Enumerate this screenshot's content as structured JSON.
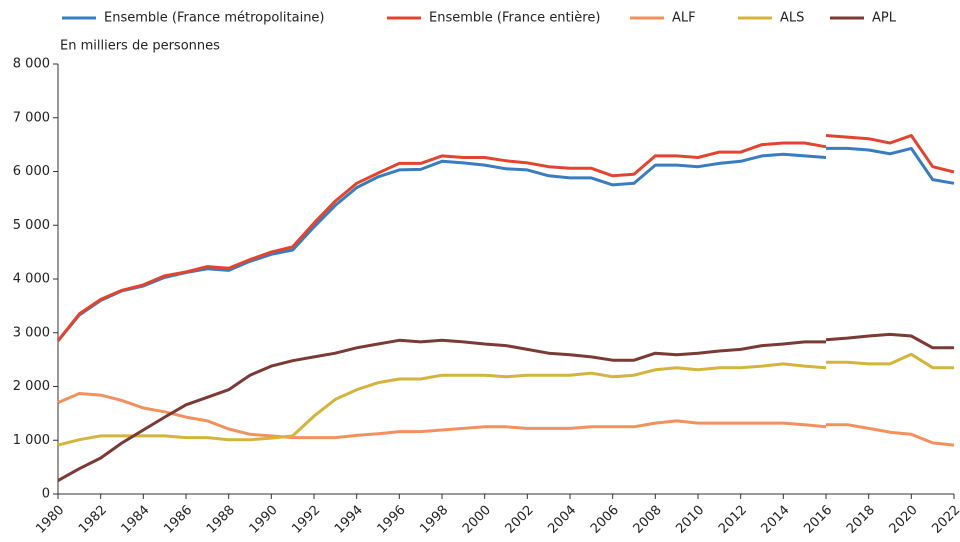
{
  "chart_data": {
    "type": "line",
    "y_label": "En milliers de personnes",
    "xlim": [
      1980,
      2022
    ],
    "xticks": [
      1980,
      1982,
      1984,
      1986,
      1988,
      1990,
      1992,
      1994,
      1996,
      1998,
      2000,
      2002,
      2004,
      2006,
      2008,
      2010,
      2012,
      2014,
      2016,
      2018,
      2020,
      2022
    ],
    "ylim": [
      0,
      8000
    ],
    "yticks": [
      0,
      {
        "value": 1000,
        "label": "1 000"
      },
      {
        "value": 2000,
        "label": "2 000"
      },
      {
        "value": 3000,
        "label": "3 000"
      },
      {
        "value": 4000,
        "label": "4 000"
      },
      {
        "value": 5000,
        "label": "5 000"
      },
      {
        "value": 6000,
        "label": "6 000"
      },
      {
        "value": 7000,
        "label": "7 000"
      },
      {
        "value": 8000,
        "label": "8 000"
      }
    ],
    "grid": false,
    "legend": "top",
    "x": [
      1980,
      1981,
      1982,
      1983,
      1984,
      1985,
      1986,
      1987,
      1988,
      1989,
      1990,
      1991,
      1992,
      1993,
      1994,
      1995,
      1996,
      1997,
      1998,
      1999,
      2000,
      2001,
      2002,
      2003,
      2004,
      2005,
      2006,
      2007,
      2008,
      2009,
      2010,
      2011,
      2012,
      2013,
      2014,
      2015,
      2016,
      null,
      2016,
      2017,
      2018,
      2019,
      2020,
      2021,
      2022
    ],
    "series": [
      {
        "name": "Ensemble (France métropolitaine)",
        "color": "#3a7cc0",
        "values": [
          2850,
          3330,
          3600,
          3780,
          3870,
          4030,
          4120,
          4190,
          4160,
          4330,
          4460,
          4540,
          4970,
          5370,
          5700,
          5900,
          6030,
          6040,
          6190,
          6160,
          6120,
          6050,
          6030,
          5920,
          5880,
          5880,
          5750,
          5780,
          6120,
          6120,
          6090,
          6150,
          6190,
          6290,
          6320,
          6290,
          6260,
          null,
          6430,
          6430,
          6400,
          6330,
          6430,
          5850,
          5780
        ]
      },
      {
        "name": "Ensemble (France entière)",
        "color": "#e2452f",
        "values": [
          2850,
          3350,
          3620,
          3790,
          3890,
          4060,
          4130,
          4230,
          4200,
          4360,
          4500,
          4600,
          5040,
          5450,
          5780,
          5970,
          6150,
          6150,
          6290,
          6260,
          6260,
          6200,
          6160,
          6090,
          6060,
          6060,
          5920,
          5950,
          6290,
          6290,
          6260,
          6360,
          6360,
          6500,
          6530,
          6530,
          6460,
          null,
          6670,
          6640,
          6610,
          6530,
          6670,
          6090,
          5990
        ]
      },
      {
        "name": "ALF",
        "color": "#f2915e",
        "values": [
          1700,
          1870,
          1840,
          1740,
          1600,
          1530,
          1430,
          1360,
          1210,
          1110,
          1080,
          1050,
          1050,
          1050,
          1090,
          1120,
          1160,
          1160,
          1190,
          1220,
          1250,
          1250,
          1220,
          1220,
          1220,
          1250,
          1250,
          1250,
          1320,
          1360,
          1320,
          1320,
          1320,
          1320,
          1320,
          1290,
          1250,
          null,
          1290,
          1290,
          1220,
          1150,
          1110,
          950,
          910
        ]
      },
      {
        "name": "ALS",
        "color": "#d4b43c",
        "values": [
          910,
          1010,
          1080,
          1080,
          1080,
          1080,
          1050,
          1050,
          1010,
          1010,
          1040,
          1080,
          1450,
          1760,
          1940,
          2070,
          2140,
          2140,
          2210,
          2210,
          2210,
          2180,
          2210,
          2210,
          2210,
          2250,
          2180,
          2210,
          2310,
          2350,
          2310,
          2350,
          2350,
          2380,
          2420,
          2380,
          2350,
          null,
          2450,
          2450,
          2420,
          2420,
          2600,
          2350,
          2350
        ]
      },
      {
        "name": "APL",
        "color": "#7b3a34",
        "values": [
          250,
          470,
          670,
          950,
          1190,
          1430,
          1660,
          1800,
          1940,
          2210,
          2380,
          2480,
          2550,
          2620,
          2720,
          2790,
          2860,
          2830,
          2860,
          2830,
          2790,
          2760,
          2690,
          2620,
          2590,
          2550,
          2490,
          2490,
          2620,
          2590,
          2620,
          2660,
          2690,
          2760,
          2790,
          2830,
          2830,
          null,
          2870,
          2900,
          2940,
          2970,
          2940,
          2720,
          2720
        ]
      }
    ]
  }
}
